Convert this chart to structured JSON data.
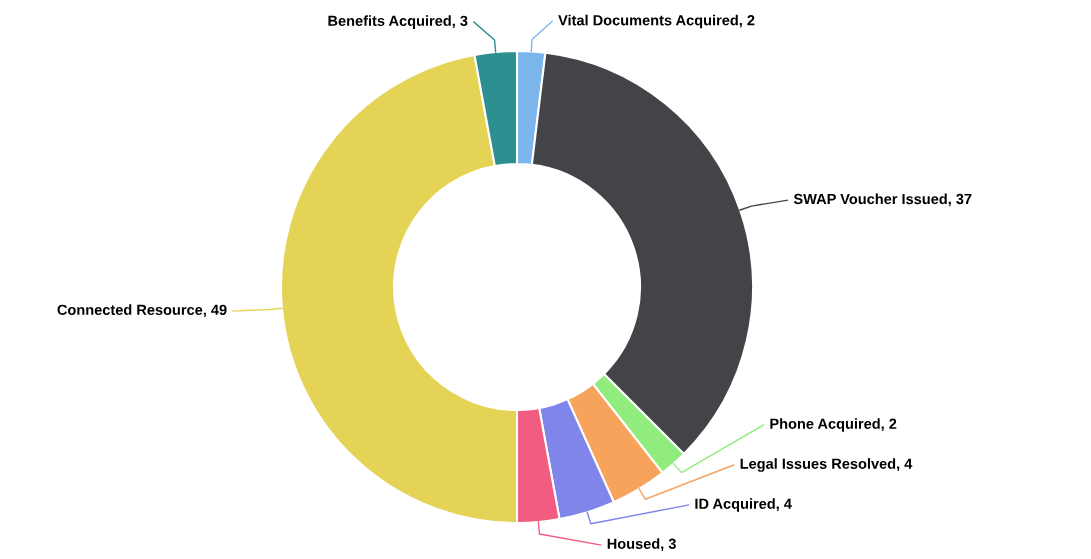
{
  "chart_data": {
    "type": "donut",
    "categories": [
      "Vital Documents Acquired, 2",
      "SWAP Voucher Issued, 37",
      "Phone Acquired, 2",
      "Legal Issues Resolved, 4",
      "ID Acquired, 4",
      "Housed, 3",
      "Connected Resource, 49",
      "Benefits Acquired, 3"
    ],
    "values": [
      2,
      37,
      2,
      4,
      4,
      3,
      49,
      3
    ],
    "colors": [
      "#7cb5ec",
      "#434348",
      "#90ed7d",
      "#f7a35c",
      "#8085e9",
      "#f15c80",
      "#e4d354",
      "#2b908f"
    ],
    "legend": false
  }
}
